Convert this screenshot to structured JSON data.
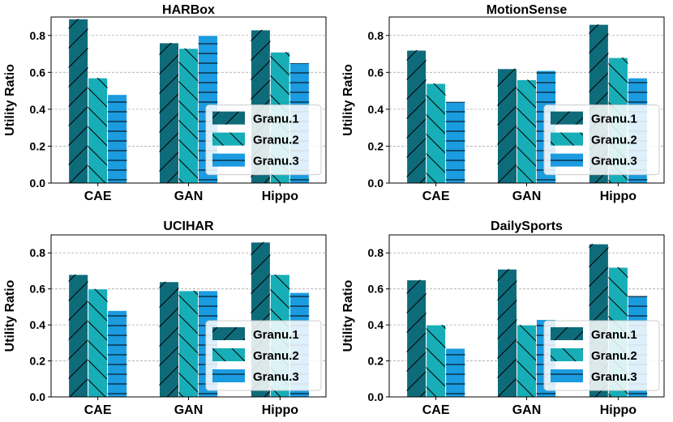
{
  "legend": {
    "position": "center-right",
    "entries": [
      "Granu.1",
      "Granu.2",
      "Granu.3"
    ]
  },
  "colors": {
    "Granu.1": "#0e6b7a",
    "Granu.2": "#17aeb8",
    "Granu.3": "#1b9be0"
  },
  "chart_data": [
    {
      "type": "bar",
      "title": "HARBox",
      "ylabel": "Utility Ratio",
      "xlabel": "",
      "ylim": [
        0,
        0.9
      ],
      "yticks": [
        "0.0",
        "0.2",
        "0.4",
        "0.6",
        "0.8"
      ],
      "grid": "horizontal dashed",
      "categories": [
        "CAE",
        "GAN",
        "Hippo"
      ],
      "series": [
        {
          "name": "Granu.1",
          "values": [
            0.89,
            0.76,
            0.83
          ]
        },
        {
          "name": "Granu.2",
          "values": [
            0.57,
            0.73,
            0.71
          ]
        },
        {
          "name": "Granu.3",
          "values": [
            0.48,
            0.8,
            0.65
          ]
        }
      ]
    },
    {
      "type": "bar",
      "title": "MotionSense",
      "ylabel": "Utility Ratio",
      "xlabel": "",
      "ylim": [
        0,
        0.9
      ],
      "yticks": [
        "0.0",
        "0.2",
        "0.4",
        "0.6",
        "0.8"
      ],
      "grid": "horizontal dashed",
      "categories": [
        "CAE",
        "GAN",
        "Hippo"
      ],
      "series": [
        {
          "name": "Granu.1",
          "values": [
            0.72,
            0.62,
            0.86
          ]
        },
        {
          "name": "Granu.2",
          "values": [
            0.54,
            0.56,
            0.68
          ]
        },
        {
          "name": "Granu.3",
          "values": [
            0.44,
            0.61,
            0.57
          ]
        }
      ]
    },
    {
      "type": "bar",
      "title": "UCIHAR",
      "ylabel": "Utility Ratio",
      "xlabel": "",
      "ylim": [
        0,
        0.9
      ],
      "yticks": [
        "0.0",
        "0.2",
        "0.4",
        "0.6",
        "0.8"
      ],
      "grid": "horizontal dashed",
      "categories": [
        "CAE",
        "GAN",
        "Hippo"
      ],
      "series": [
        {
          "name": "Granu.1",
          "values": [
            0.68,
            0.64,
            0.86
          ]
        },
        {
          "name": "Granu.2",
          "values": [
            0.6,
            0.59,
            0.68
          ]
        },
        {
          "name": "Granu.3",
          "values": [
            0.48,
            0.59,
            0.58
          ]
        }
      ]
    },
    {
      "type": "bar",
      "title": "DailySports",
      "ylabel": "Utility Ratio",
      "xlabel": "",
      "ylim": [
        0,
        0.9
      ],
      "yticks": [
        "0.0",
        "0.2",
        "0.4",
        "0.6",
        "0.8"
      ],
      "grid": "horizontal dashed",
      "categories": [
        "CAE",
        "GAN",
        "Hippo"
      ],
      "series": [
        {
          "name": "Granu.1",
          "values": [
            0.65,
            0.71,
            0.85
          ]
        },
        {
          "name": "Granu.2",
          "values": [
            0.4,
            0.4,
            0.72
          ]
        },
        {
          "name": "Granu.3",
          "values": [
            0.27,
            0.43,
            0.56
          ]
        }
      ]
    }
  ]
}
